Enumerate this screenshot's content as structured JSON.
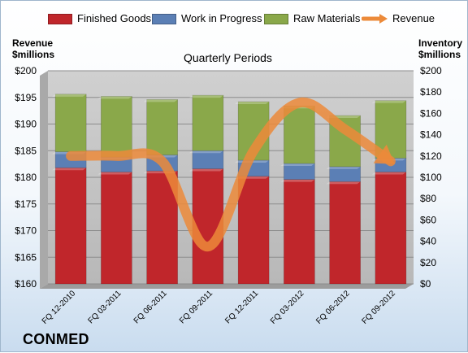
{
  "legend": [
    {
      "label": "Finished Goods",
      "color": "#c0262b"
    },
    {
      "label": "Work in Progress",
      "color": "#5b7fb5"
    },
    {
      "label": "Raw Materials",
      "color": "#8aa84a"
    },
    {
      "label": "Revenue",
      "color": "#ec8a3a"
    }
  ],
  "left_axis_title": [
    "Revenue",
    "$millions"
  ],
  "right_axis_title": [
    "Inventory",
    "$millions"
  ],
  "subtitle": "Quarterly Periods",
  "brand": "CONMED",
  "chart_data": {
    "type": "bar",
    "stacked": true,
    "categories": [
      "FQ 12-2010",
      "FQ 03-2011",
      "FQ 06-2011",
      "FQ 09-2011",
      "FQ 12-2011",
      "FQ 03-2012",
      "FQ 06-2012",
      "FQ 09-2012"
    ],
    "series": [
      {
        "name": "Finished Goods",
        "axis": "right",
        "color": "#c0262b",
        "values": [
          109,
          105,
          106,
          108,
          101,
          98,
          96,
          105
        ]
      },
      {
        "name": "Work in Progress",
        "axis": "right",
        "color": "#5b7fb5",
        "values": [
          15,
          14,
          15,
          17,
          15,
          15,
          14,
          13
        ]
      },
      {
        "name": "Raw Materials",
        "axis": "right",
        "color": "#8aa84a",
        "values": [
          54,
          57,
          52,
          52,
          55,
          54,
          48,
          54
        ]
      },
      {
        "name": "Revenue",
        "axis": "left",
        "type": "line",
        "color": "#ec8a3a",
        "values": [
          184,
          184,
          183,
          167,
          185,
          194,
          189,
          183
        ]
      }
    ],
    "y_left": {
      "min": 160,
      "max": 200,
      "step": 5,
      "tick_format": "$"
    },
    "y_right": {
      "min": 0,
      "max": 200,
      "step": 20,
      "tick_format": "$"
    },
    "grid": true,
    "legend_position": "top"
  }
}
